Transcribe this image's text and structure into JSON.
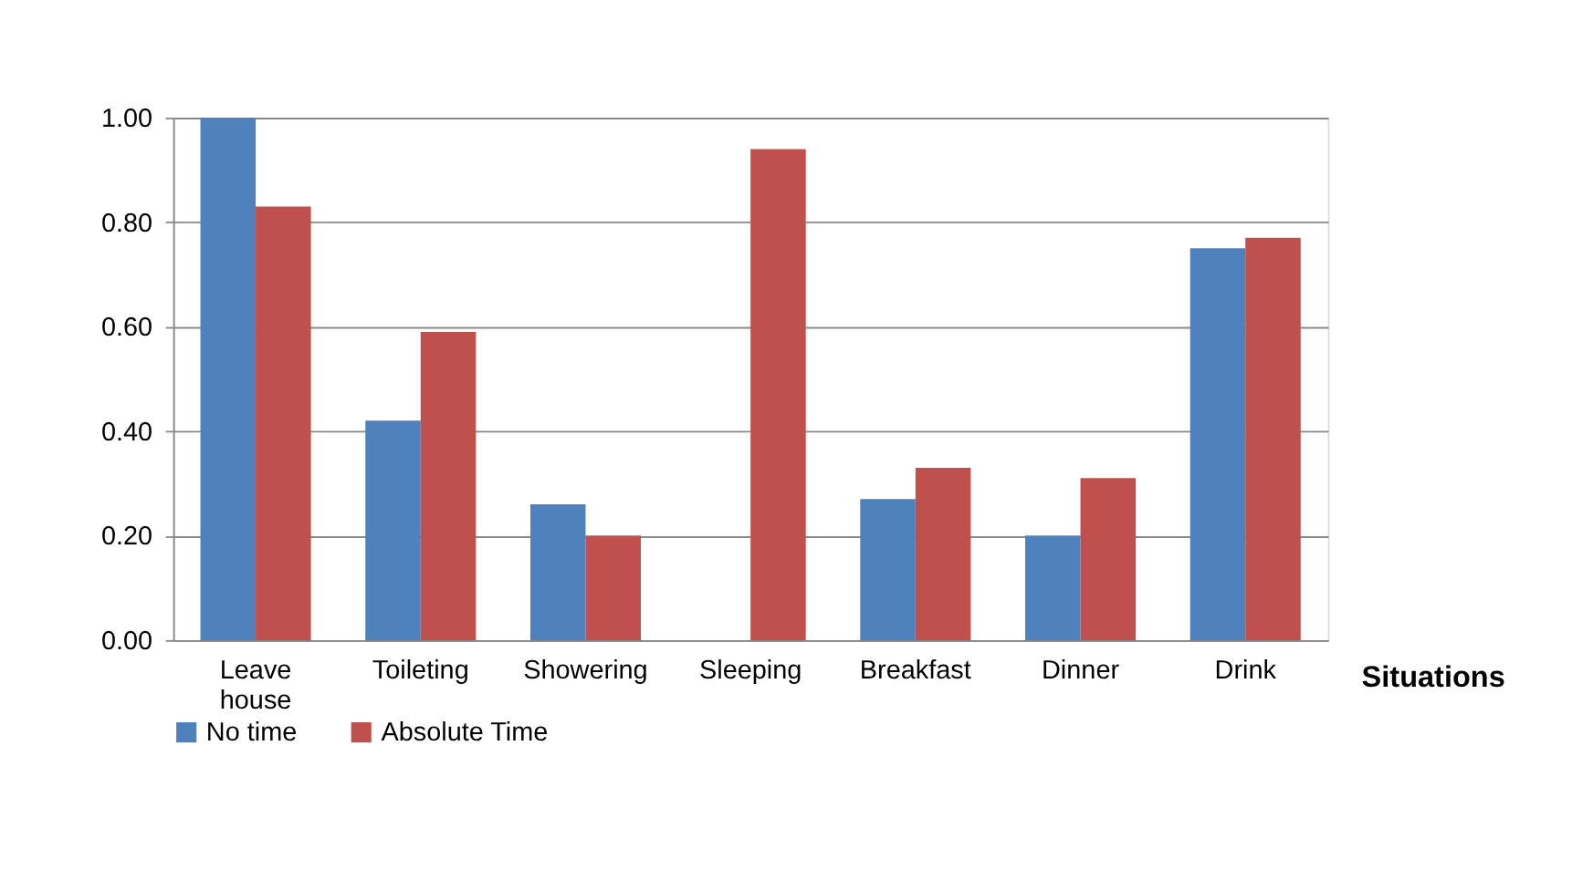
{
  "chart_data": {
    "type": "bar",
    "categories": [
      "Leave house",
      "Toileting",
      "Showering",
      "Sleeping",
      "Breakfast",
      "Dinner",
      "Drink"
    ],
    "series": [
      {
        "name": "No time",
        "color": "#4f81bd",
        "values": [
          1.0,
          0.42,
          0.26,
          null,
          0.27,
          0.2,
          0.75
        ]
      },
      {
        "name": "Absolute Time",
        "color": "#c0504d",
        "values": [
          0.83,
          0.59,
          0.2,
          0.94,
          0.33,
          0.31,
          0.77
        ]
      }
    ],
    "xlabel": "Situations",
    "ylim": [
      0,
      1.0
    ],
    "yticks": [
      {
        "value": 0,
        "label": "0.00"
      },
      {
        "value": 0.2,
        "label": "0.20"
      },
      {
        "value": 0.4,
        "label": "0.40"
      },
      {
        "value": 0.6,
        "label": "0.60"
      },
      {
        "value": 0.8,
        "label": "0.80"
      },
      {
        "value": 1.0,
        "label": "1.00"
      }
    ],
    "grid": "y",
    "legend": "bottom"
  }
}
